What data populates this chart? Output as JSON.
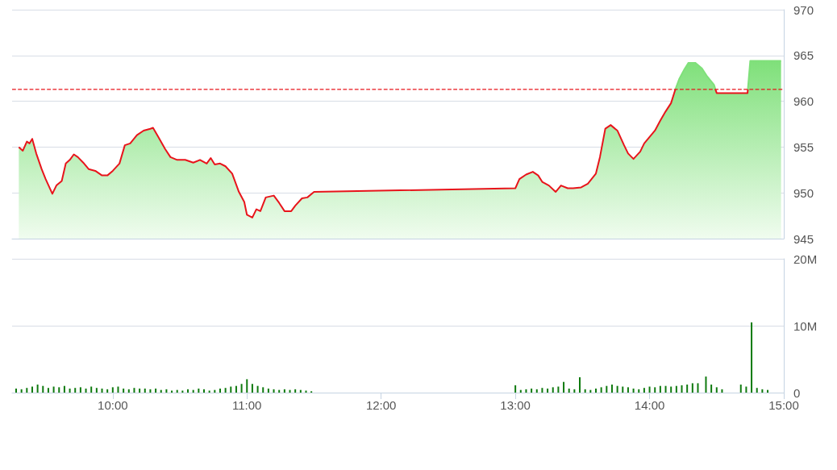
{
  "chart_data": [
    {
      "type": "area",
      "xlim": [
        9.25,
        15
      ],
      "ylim": [
        945,
        970
      ],
      "yticks": [
        945,
        950,
        955,
        960,
        965,
        970
      ],
      "grid": "y",
      "tick_labels": "y",
      "ref_lines": [
        {
          "axis": "y",
          "value": 961.3,
          "label": null,
          "color": "#e8141b",
          "line_style": "dashed"
        }
      ],
      "x": [
        9.3,
        9.33,
        9.36,
        9.38,
        9.4,
        9.43,
        9.47,
        9.5,
        9.55,
        9.58,
        9.62,
        9.65,
        9.68,
        9.71,
        9.74,
        9.78,
        9.82,
        9.87,
        9.92,
        9.96,
        10.0,
        10.05,
        10.09,
        10.13,
        10.18,
        10.23,
        10.28,
        10.3,
        10.34,
        10.39,
        10.43,
        10.48,
        10.54,
        10.6,
        10.65,
        10.7,
        10.73,
        10.76,
        10.8,
        10.84,
        10.89,
        10.94,
        10.98,
        11.0,
        11.04,
        11.07,
        11.1,
        11.14,
        11.2,
        11.24,
        11.28,
        11.33,
        11.36,
        11.41,
        11.45,
        11.5,
        13.0,
        13.03,
        13.08,
        13.13,
        13.17,
        13.2,
        13.25,
        13.3,
        13.34,
        13.39,
        13.43,
        13.49,
        13.54,
        13.6,
        13.63,
        13.67,
        13.71,
        13.76,
        13.81,
        13.84,
        13.88,
        13.93,
        13.96,
        14.0,
        14.04,
        14.08,
        14.12,
        14.16,
        14.19,
        14.22,
        14.26,
        14.29,
        14.34,
        14.39,
        14.43,
        14.48,
        14.5,
        14.73,
        14.75,
        14.98
      ],
      "series": [
        {
          "color": "#e8141b",
          "values": [
            955.0,
            954.6,
            955.6,
            955.4,
            955.9,
            954.3,
            952.6,
            951.5,
            949.9,
            950.8,
            951.3,
            953.2,
            953.6,
            954.2,
            953.9,
            953.3,
            952.6,
            952.4,
            951.9,
            951.9,
            952.4,
            953.2,
            955.2,
            955.4,
            956.3,
            956.8,
            957.0,
            957.1,
            956.1,
            954.8,
            953.9,
            953.6,
            953.6,
            953.3,
            953.6,
            953.2,
            953.8,
            953.1,
            953.2,
            952.9,
            952.1,
            950.1,
            949.0,
            947.6,
            947.3,
            948.2,
            948.0,
            949.5,
            949.7,
            948.9,
            948.0,
            948.0,
            948.6,
            949.4,
            949.5,
            950.1,
            950.5,
            951.5,
            952.0,
            952.3,
            951.9,
            951.2,
            950.8,
            950.1,
            950.8,
            950.5,
            950.5,
            950.6,
            951.0,
            952.1,
            953.9,
            957.0,
            957.4,
            956.8,
            955.2,
            954.3,
            953.7,
            954.5,
            955.4,
            956.1,
            956.8,
            957.9,
            958.9,
            959.8,
            961.2,
            962.4,
            963.5,
            964.2,
            964.2,
            963.6,
            962.7,
            961.8,
            960.9,
            960.9,
            964.4,
            964.4
          ]
        }
      ]
    },
    {
      "type": "bar",
      "xlim": [
        9.25,
        15
      ],
      "xticks": [
        {
          "value": 10,
          "label": "10:00"
        },
        {
          "value": 11,
          "label": "11:00"
        },
        {
          "value": 12,
          "label": "12:00"
        },
        {
          "value": 13,
          "label": "13:00"
        },
        {
          "value": 14,
          "label": "14:00"
        },
        {
          "value": 15,
          "label": "15:00"
        }
      ],
      "ylim": [
        0,
        20
      ],
      "yticks": [
        0,
        {
          "value": 10,
          "label": "10M"
        },
        {
          "value": 20,
          "label": "20M"
        }
      ],
      "grid": "y",
      "x": [
        9.28,
        9.32,
        9.36,
        9.4,
        9.44,
        9.48,
        9.52,
        9.56,
        9.6,
        9.64,
        9.68,
        9.72,
        9.76,
        9.8,
        9.84,
        9.88,
        9.92,
        9.96,
        10.0,
        10.04,
        10.08,
        10.12,
        10.16,
        10.2,
        10.24,
        10.28,
        10.32,
        10.36,
        10.4,
        10.44,
        10.48,
        10.52,
        10.56,
        10.6,
        10.64,
        10.68,
        10.72,
        10.76,
        10.8,
        10.84,
        10.88,
        10.92,
        10.96,
        11.0,
        11.04,
        11.08,
        11.12,
        11.16,
        11.2,
        11.24,
        11.28,
        11.32,
        11.36,
        11.4,
        11.44,
        11.48,
        13.0,
        13.04,
        13.08,
        13.12,
        13.16,
        13.2,
        13.24,
        13.28,
        13.32,
        13.36,
        13.4,
        13.44,
        13.48,
        13.52,
        13.56,
        13.6,
        13.64,
        13.68,
        13.72,
        13.76,
        13.8,
        13.84,
        13.88,
        13.92,
        13.96,
        14.0,
        14.04,
        14.08,
        14.12,
        14.16,
        14.2,
        14.24,
        14.28,
        14.32,
        14.36,
        14.42,
        14.46,
        14.5,
        14.54,
        14.68,
        14.72,
        14.76,
        14.8,
        14.84,
        14.88
      ],
      "series": [
        {
          "color": "#0f7a0f",
          "values": [
            0.6,
            0.5,
            0.7,
            0.9,
            1.2,
            1.0,
            0.7,
            0.9,
            0.8,
            1.0,
            0.6,
            0.7,
            0.8,
            0.6,
            0.9,
            0.7,
            0.6,
            0.5,
            0.8,
            0.9,
            0.6,
            0.5,
            0.7,
            0.6,
            0.6,
            0.5,
            0.6,
            0.4,
            0.5,
            0.3,
            0.4,
            0.3,
            0.5,
            0.4,
            0.6,
            0.5,
            0.3,
            0.4,
            0.6,
            0.7,
            0.9,
            1.0,
            1.3,
            2.0,
            1.3,
            1.0,
            0.8,
            0.6,
            0.5,
            0.4,
            0.5,
            0.4,
            0.5,
            0.4,
            0.3,
            0.2,
            1.1,
            0.4,
            0.5,
            0.6,
            0.5,
            0.7,
            0.6,
            0.8,
            0.9,
            1.6,
            0.6,
            0.5,
            2.3,
            0.5,
            0.4,
            0.6,
            0.8,
            1.0,
            1.2,
            1.0,
            0.9,
            0.8,
            0.6,
            0.5,
            0.7,
            0.9,
            0.8,
            1.0,
            1.0,
            0.9,
            1.0,
            1.1,
            1.2,
            1.4,
            1.4,
            2.4,
            1.2,
            0.8,
            0.5,
            1.2,
            0.9,
            10.5,
            0.7,
            0.5,
            0.4
          ]
        }
      ]
    }
  ]
}
